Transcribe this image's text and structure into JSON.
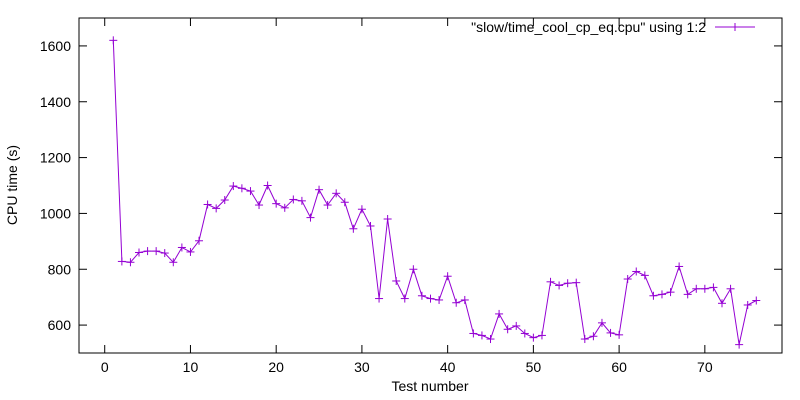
{
  "chart_data": {
    "type": "line",
    "title": "",
    "xlabel": "Test number",
    "ylabel": "CPU time (s)",
    "xlim": [
      -3,
      79
    ],
    "ylim": [
      500,
      1700
    ],
    "xticks": [
      0,
      10,
      20,
      30,
      40,
      50,
      60,
      70
    ],
    "yticks": [
      600,
      800,
      1000,
      1200,
      1400,
      1600
    ],
    "legend_position": "top-right",
    "grid": false,
    "series": [
      {
        "name": "\"slow/time_cool_cp_eq.cpu\" using 1:2",
        "color": "#9400d3",
        "marker": "plus",
        "x": [
          1,
          2,
          3,
          4,
          5,
          6,
          7,
          8,
          9,
          10,
          11,
          12,
          13,
          14,
          15,
          16,
          17,
          18,
          19,
          20,
          21,
          22,
          23,
          24,
          25,
          26,
          27,
          28,
          29,
          30,
          31,
          32,
          33,
          34,
          35,
          36,
          37,
          38,
          39,
          40,
          41,
          42,
          43,
          44,
          45,
          46,
          47,
          48,
          49,
          50,
          51,
          52,
          53,
          54,
          55,
          56,
          57,
          58,
          59,
          60,
          61,
          62,
          63,
          64,
          65,
          66,
          67,
          68,
          69,
          70,
          71,
          72,
          73,
          74,
          75,
          76
        ],
        "y": [
          1620,
          828,
          825,
          860,
          865,
          865,
          858,
          825,
          878,
          862,
          902,
          1032,
          1018,
          1048,
          1098,
          1090,
          1080,
          1030,
          1100,
          1035,
          1020,
          1050,
          1045,
          985,
          1085,
          1030,
          1072,
          1040,
          945,
          1015,
          955,
          695,
          980,
          758,
          695,
          800,
          705,
          695,
          690,
          775,
          680,
          690,
          570,
          563,
          550,
          640,
          585,
          597,
          570,
          555,
          563,
          755,
          742,
          750,
          752,
          550,
          560,
          608,
          572,
          565,
          765,
          792,
          778,
          705,
          710,
          718,
          810,
          710,
          730,
          730,
          735,
          678,
          730,
          530,
          672,
          688
        ]
      }
    ]
  }
}
